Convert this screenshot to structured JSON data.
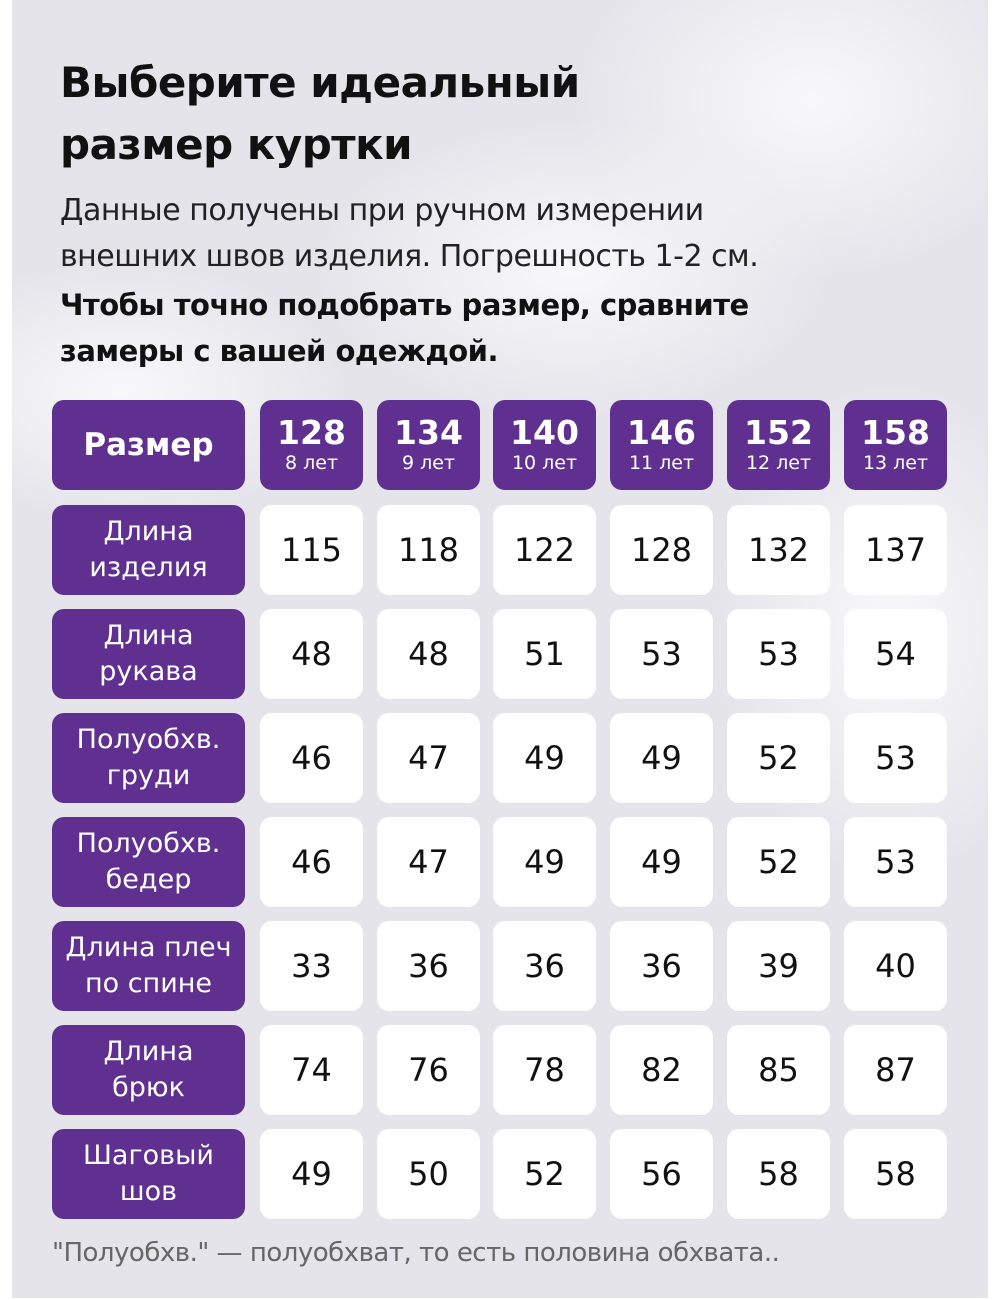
{
  "title_lines": [
    "Выберите идеальный",
    "размер куртки"
  ],
  "subtitle_lines": [
    "Данные получены при ручном измерении",
    "внешних швов изделия. Погрешность 1-2 см."
  ],
  "emphasis_lines": [
    "Чтобы точно подобрать размер, сравните",
    "замеры с вашей одеждой."
  ],
  "colors": {
    "accent": "#5f3090",
    "background": "#e5e4eb",
    "cell": "#ffffff"
  },
  "table": {
    "corner": "Размер",
    "sizes": [
      {
        "size": "128",
        "age": "8 лет"
      },
      {
        "size": "134",
        "age": "9 лет"
      },
      {
        "size": "140",
        "age": "10 лет"
      },
      {
        "size": "146",
        "age": "11 лет"
      },
      {
        "size": "152",
        "age": "12 лет"
      },
      {
        "size": "158",
        "age": "13 лет"
      }
    ],
    "rows": [
      {
        "label": [
          "Длина",
          "изделия"
        ],
        "values": [
          "115",
          "118",
          "122",
          "128",
          "132",
          "137"
        ]
      },
      {
        "label": [
          "Длина",
          "рукава"
        ],
        "values": [
          "48",
          "48",
          "51",
          "53",
          "53",
          "54"
        ]
      },
      {
        "label": [
          "Полуобхв.",
          "груди"
        ],
        "values": [
          "46",
          "47",
          "49",
          "49",
          "52",
          "53"
        ]
      },
      {
        "label": [
          "Полуобхв.",
          "бедер"
        ],
        "values": [
          "46",
          "47",
          "49",
          "49",
          "52",
          "53"
        ]
      },
      {
        "label": [
          "Длина плеч",
          "по спине"
        ],
        "values": [
          "33",
          "36",
          "36",
          "36",
          "39",
          "40"
        ]
      },
      {
        "label": [
          "Длина",
          "брюк"
        ],
        "values": [
          "74",
          "76",
          "78",
          "82",
          "85",
          "87"
        ]
      },
      {
        "label": [
          "Шаговый",
          "шов"
        ],
        "values": [
          "49",
          "50",
          "52",
          "56",
          "58",
          "58"
        ]
      }
    ]
  },
  "footnote": "\"Полуобхв.\" — полуобхват, то есть половина обхвата.."
}
